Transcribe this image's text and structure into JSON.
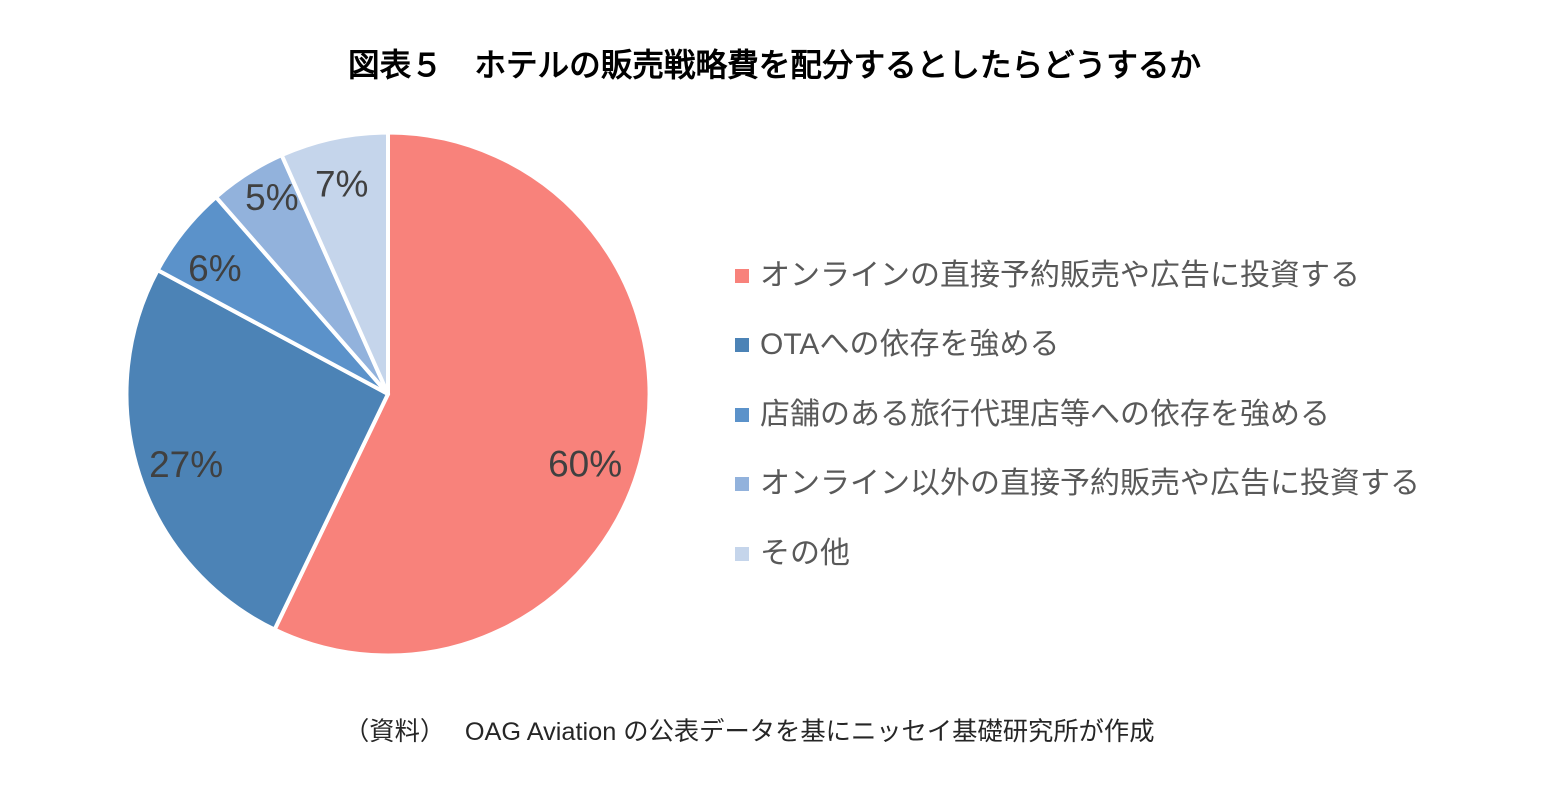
{
  "title": "図表５　ホテルの販売戦略費を配分するとしたらどうするか",
  "source_note": "（資料）　 OAG Aviation の公表データを基にニッセイ基礎研究所が作成",
  "chart_data": {
    "type": "pie",
    "title": "図表５　ホテルの販売戦略費を配分するとしたらどうするか",
    "slices": [
      {
        "label": "オンラインの直接予約販売や広告に投資する",
        "value": 60,
        "color": "#F8827B"
      },
      {
        "label": "OTAへの依存を強める",
        "value": 27,
        "color": "#4C83B6"
      },
      {
        "label": "店舗のある旅行代理店等への依存を強める",
        "value": 6,
        "color": "#5B92CA"
      },
      {
        "label": "オンライン以外の直接予約販売や広告に投資する",
        "value": 5,
        "color": "#92B2DC"
      },
      {
        "label": "その他",
        "value": 7,
        "color": "#C5D5EB"
      }
    ],
    "value_suffix": "%",
    "legend_position": "right",
    "start_angle_deg": 0,
    "direction": "clockwise",
    "colors": {
      "slice_label_text": "#404040",
      "legend_text": "#595959",
      "title_text": "#000000",
      "source_text": "#262626",
      "separator": "#FFFFFF"
    }
  }
}
